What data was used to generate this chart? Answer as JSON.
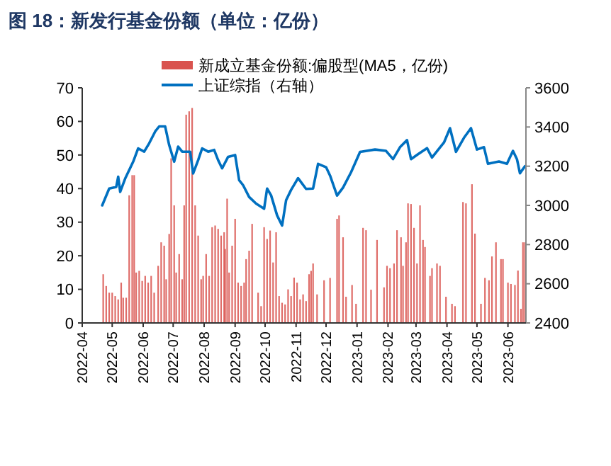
{
  "chart_data": {
    "type": "bar",
    "title": "图 18：新发行基金份额（单位：亿份）",
    "xlim": [
      "2022-04-01",
      "2023-06-19"
    ],
    "xticks": [
      "2022-04",
      "2022-05",
      "2022-06",
      "2022-07",
      "2022-08",
      "2022-09",
      "2022-10",
      "2022-11",
      "2022-12",
      "2023-01",
      "2023-02",
      "2023-03",
      "2023-04",
      "2023-05",
      "2023-06"
    ],
    "ylim": [
      0,
      70
    ],
    "yticks": [
      0,
      10,
      20,
      30,
      40,
      50,
      60,
      70
    ],
    "y2lim": [
      2400,
      3600
    ],
    "y2ticks": [
      2400,
      2600,
      2800,
      3000,
      3200,
      3400,
      3600
    ],
    "legend": "top",
    "grid": false,
    "series": [
      {
        "name": "新成立基金份额:偏股型(MA5，亿份)",
        "color": "#d9534f",
        "x": [
          "2022-04-22",
          "2022-04-25",
          "2022-04-28",
          "2022-05-01",
          "2022-05-04",
          "2022-05-07",
          "2022-05-10",
          "2022-05-12",
          "2022-05-15",
          "2022-05-18",
          "2022-05-21",
          "2022-05-23",
          "2022-05-25",
          "2022-05-28",
          "2022-05-31",
          "2022-06-03",
          "2022-06-06",
          "2022-06-09",
          "2022-06-12",
          "2022-06-16",
          "2022-06-19",
          "2022-06-22",
          "2022-06-24",
          "2022-06-27",
          "2022-06-29",
          "2022-07-02",
          "2022-07-04",
          "2022-07-07",
          "2022-07-10",
          "2022-07-12",
          "2022-07-14",
          "2022-07-17",
          "2022-07-20",
          "2022-07-23",
          "2022-07-26",
          "2022-07-29",
          "2022-07-31",
          "2022-08-03",
          "2022-08-06",
          "2022-08-09",
          "2022-08-12",
          "2022-08-15",
          "2022-08-18",
          "2022-08-21",
          "2022-08-22",
          "2022-08-24",
          "2022-08-26",
          "2022-08-29",
          "2022-09-01",
          "2022-09-04",
          "2022-09-07",
          "2022-09-10",
          "2022-09-12",
          "2022-09-15",
          "2022-09-18",
          "2022-09-24",
          "2022-09-27",
          "2022-09-30",
          "2022-10-03",
          "2022-10-06",
          "2022-10-09",
          "2022-10-12",
          "2022-10-15",
          "2022-10-18",
          "2022-10-21",
          "2022-10-24",
          "2022-10-27",
          "2022-10-30",
          "2022-11-02",
          "2022-11-05",
          "2022-11-08",
          "2022-11-11",
          "2022-11-14",
          "2022-11-16",
          "2022-11-18",
          "2022-11-22",
          "2022-11-29",
          "2022-12-05",
          "2022-12-12",
          "2022-12-14",
          "2022-12-18",
          "2022-12-21",
          "2022-12-27",
          "2022-12-31",
          "2023-01-07",
          "2023-01-10",
          "2023-01-15",
          "2023-01-21",
          "2023-01-28",
          "2023-01-31",
          "2023-02-03",
          "2023-02-07",
          "2023-02-10",
          "2023-02-14",
          "2023-02-16",
          "2023-02-19",
          "2023-02-21",
          "2023-02-24",
          "2023-02-27",
          "2023-03-02",
          "2023-03-05",
          "2023-03-08",
          "2023-03-10",
          "2023-03-15",
          "2023-03-17",
          "2023-03-22",
          "2023-03-25",
          "2023-03-31",
          "2023-04-06",
          "2023-04-09",
          "2023-04-17",
          "2023-04-20",
          "2023-04-26",
          "2023-04-29",
          "2023-05-05",
          "2023-05-09",
          "2023-05-13",
          "2023-05-16",
          "2023-05-20",
          "2023-05-25",
          "2023-05-27",
          "2023-06-01",
          "2023-06-04",
          "2023-06-08",
          "2023-06-11",
          "2023-06-14",
          "2023-06-16",
          "2023-06-18"
        ],
        "values": [
          14.5,
          11,
          9,
          9,
          8,
          7,
          12,
          7.5,
          7.5,
          38,
          44,
          44,
          15,
          15.5,
          12.5,
          14,
          12,
          14,
          9,
          17,
          24,
          23,
          13,
          26.5,
          49,
          35,
          15,
          20.5,
          13,
          35,
          62,
          63,
          64,
          35,
          26,
          13,
          14,
          20.5,
          14,
          28.5,
          29,
          28,
          26,
          27,
          22,
          37,
          15,
          23,
          31,
          12,
          11,
          12,
          19,
          21.5,
          29.5,
          9,
          5,
          28.5,
          25,
          27.5,
          18,
          27,
          8,
          6,
          5.5,
          10,
          8,
          13.5,
          12,
          7,
          8.5,
          6.5,
          14.5,
          15.5,
          17.7,
          8.5,
          12.7,
          13.4,
          31,
          32,
          25.5,
          7.8,
          11.3,
          5.7,
          28.3,
          27.6,
          9.9,
          24.7,
          10.6,
          17,
          16.3,
          17.7,
          27.6,
          25.5,
          17,
          24,
          35.6,
          35.4,
          28.3,
          17.7,
          35,
          24.7,
          22.6,
          14,
          16.3,
          17.7,
          17,
          7.8,
          5.7,
          5,
          36,
          35.6,
          41.3,
          26.6,
          5.7,
          13.4,
          12.7,
          19.8,
          24,
          19,
          19,
          12,
          11.6,
          11.3,
          15.6,
          4.2,
          24,
          24
        ]
      },
      {
        "name": "上证综指（右轴）",
        "type": "line",
        "axis": "y2",
        "color": "#0070c0",
        "x": [
          "2022-04-21",
          "2022-04-28",
          "2022-05-05",
          "2022-05-07",
          "2022-05-09",
          "2022-05-14",
          "2022-05-22",
          "2022-05-27",
          "2022-06-02",
          "2022-06-07",
          "2022-06-13",
          "2022-06-17",
          "2022-06-23",
          "2022-06-27",
          "2022-07-02",
          "2022-07-06",
          "2022-07-10",
          "2022-07-18",
          "2022-07-21",
          "2022-07-26",
          "2022-07-30",
          "2022-08-05",
          "2022-08-11",
          "2022-08-15",
          "2022-08-19",
          "2022-08-25",
          "2022-09-01",
          "2022-09-05",
          "2022-09-09",
          "2022-09-15",
          "2022-09-22",
          "2022-09-30",
          "2022-10-03",
          "2022-10-07",
          "2022-10-13",
          "2022-10-18",
          "2022-10-22",
          "2022-10-27",
          "2022-11-03",
          "2022-11-11",
          "2022-11-18",
          "2022-11-23",
          "2022-12-01",
          "2022-12-05",
          "2022-12-12",
          "2022-12-18",
          "2022-12-26",
          "2023-01-04",
          "2023-01-19",
          "2023-01-30",
          "2023-02-06",
          "2023-02-13",
          "2023-02-20",
          "2023-02-24",
          "2023-03-03",
          "2023-03-12",
          "2023-03-17",
          "2023-03-29",
          "2023-04-04",
          "2023-04-10",
          "2023-04-18",
          "2023-04-25",
          "2023-05-01",
          "2023-05-08",
          "2023-05-12",
          "2023-05-23",
          "2023-05-31",
          "2023-06-06",
          "2023-06-10",
          "2023-06-13",
          "2023-06-18"
        ],
        "values": [
          3000,
          3086,
          3094,
          3146,
          3069,
          3137,
          3223,
          3291,
          3274,
          3317,
          3377,
          3403,
          3403,
          3308,
          3223,
          3300,
          3274,
          3274,
          3163,
          3231,
          3291,
          3274,
          3283,
          3231,
          3189,
          3248,
          3257,
          3129,
          3103,
          3043,
          3009,
          2983,
          3086,
          3051,
          2949,
          2897,
          3026,
          3079,
          3139,
          3084,
          3086,
          3212,
          3195,
          3152,
          3050,
          3091,
          3169,
          3273,
          3285,
          3278,
          3236,
          3297,
          3333,
          3236,
          3261,
          3292,
          3244,
          3321,
          3394,
          3273,
          3345,
          3394,
          3285,
          3297,
          3212,
          3224,
          3212,
          3278,
          3236,
          3164,
          3200
        ]
      }
    ]
  }
}
